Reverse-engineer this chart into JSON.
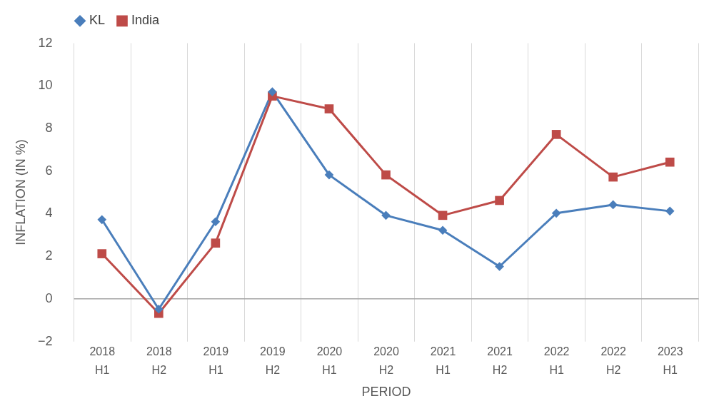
{
  "chart_data": {
    "type": "line",
    "xlabel": "PERIOD",
    "ylabel": "INFLATION (IN %)",
    "categories": [
      "2018 H1",
      "2018 H2",
      "2019 H1",
      "2019 H2",
      "2020 H1",
      "2020 H2",
      "2021 H1",
      "2021 H2",
      "2022 H1",
      "2022 H2",
      "2023 H1"
    ],
    "series": [
      {
        "name": "KL",
        "color": "#4a7ebb",
        "marker": "diamond",
        "values": [
          3.7,
          -0.5,
          3.6,
          9.7,
          5.8,
          3.9,
          3.2,
          1.5,
          4.0,
          4.4,
          4.1
        ]
      },
      {
        "name": "India",
        "color": "#be4b48",
        "marker": "square",
        "values": [
          2.1,
          -0.7,
          2.6,
          9.5,
          8.9,
          5.8,
          3.9,
          4.6,
          7.7,
          5.7,
          6.4
        ]
      }
    ],
    "ylim": [
      -2,
      12
    ],
    "yticks": [
      -2,
      0,
      2,
      4,
      6,
      8,
      10,
      12
    ],
    "grid": "x",
    "legend": "top",
    "line_style": "solid"
  }
}
